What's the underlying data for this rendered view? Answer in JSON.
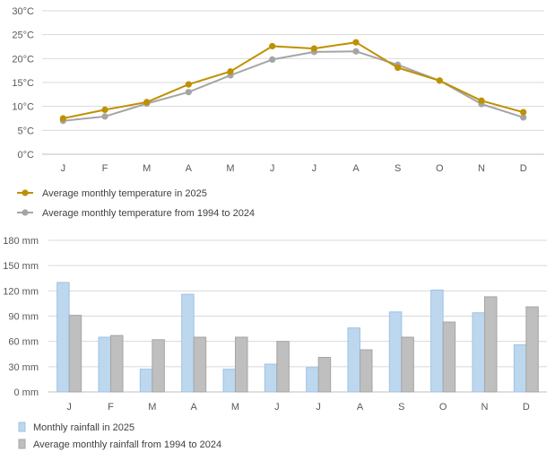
{
  "chart_data": [
    {
      "type": "line",
      "title": "",
      "xlabel": "",
      "ylabel": "",
      "categories": [
        "J",
        "F",
        "M",
        "A",
        "M",
        "J",
        "J",
        "A",
        "S",
        "O",
        "N",
        "D"
      ],
      "y_ticks": [
        "0°C",
        "5°C",
        "10°C",
        "15°C",
        "20°C",
        "25°C",
        "30°C"
      ],
      "ylim": [
        0,
        30
      ],
      "grid": true,
      "legend_position": "bottom-left",
      "series": [
        {
          "name": "Average monthly temperature in 2025",
          "color": "#BF9000",
          "values": [
            7.5,
            9.3,
            10.9,
            14.6,
            17.3,
            22.6,
            22.1,
            23.4,
            18.1,
            15.4,
            11.2,
            8.8
          ]
        },
        {
          "name": "Average monthly temperature from 1994 to 2024",
          "color": "#A5A5A5",
          "values": [
            7.0,
            7.9,
            10.6,
            13.0,
            16.5,
            19.8,
            21.4,
            21.5,
            18.7,
            15.4,
            10.5,
            7.7
          ]
        }
      ]
    },
    {
      "type": "bar",
      "title": "",
      "xlabel": "",
      "ylabel": "",
      "categories": [
        "J",
        "F",
        "M",
        "A",
        "M",
        "J",
        "J",
        "A",
        "S",
        "O",
        "N",
        "D"
      ],
      "y_ticks": [
        "0 mm",
        "30 mm",
        "60 mm",
        "90 mm",
        "120 mm",
        "150 mm",
        "180 mm"
      ],
      "ylim": [
        0,
        180
      ],
      "grid": true,
      "legend_position": "bottom-left",
      "series": [
        {
          "name": "Monthly rainfall in 2025",
          "color": "#BDD7EE",
          "stroke": "#9DC3E6",
          "values": [
            130,
            65,
            27,
            116,
            27,
            33,
            29,
            76,
            95,
            121,
            94,
            56
          ]
        },
        {
          "name": "Average monthly rainfall from 1994 to 2024",
          "color": "#BFBFBF",
          "stroke": "#A5A5A5",
          "values": [
            91,
            67,
            62,
            65,
            65,
            60,
            41,
            50,
            65,
            83,
            113,
            101
          ]
        }
      ]
    }
  ]
}
